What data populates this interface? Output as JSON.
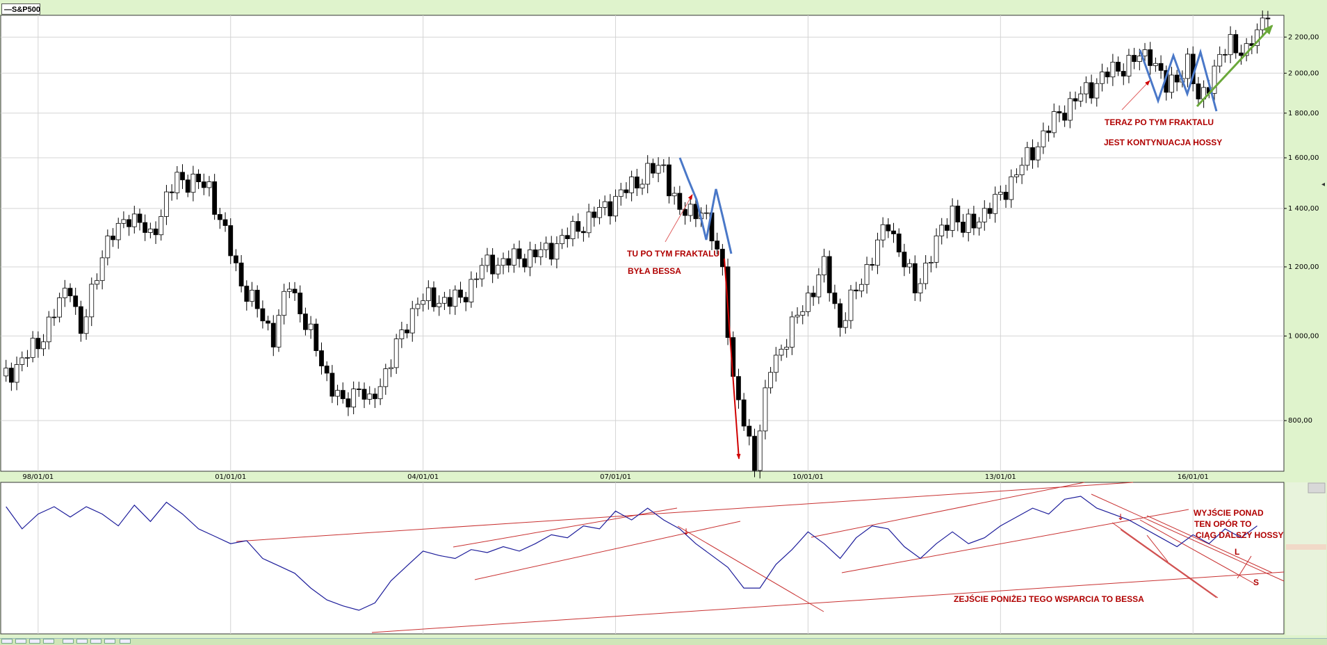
{
  "header": {
    "title": "S&P500"
  },
  "colors": {
    "candle_up": "#ffffff",
    "candle_down": "#000000",
    "fractal": "#4a78c8",
    "annotation": "#c00000",
    "trend_arrow": "#6aa83a",
    "osc_line": "#1c1c9a",
    "trendline": "#c83030",
    "grid": "#d4d4d4"
  },
  "chart_data": [
    {
      "type": "candlestick",
      "title": "S&P500",
      "scale": "log",
      "ylim": [
        700,
        2330
      ],
      "xlim": [
        "1997-06",
        "2017-06"
      ],
      "grid": true,
      "x_ticks": [
        "98/01/01",
        "01/01/01",
        "04/01/01",
        "07/01/01",
        "10/01/01",
        "13/01/01",
        "16/01/01"
      ],
      "y_ticks": [
        "800,00",
        "1 000,00",
        "1 200,00",
        "1 400,00",
        "1 600,00",
        "1 800,00",
        "2 000,00",
        "2 200,00"
      ],
      "y_tick_values": [
        800,
        1000,
        1200,
        1400,
        1600,
        1800,
        2000,
        2200
      ],
      "price_path": [
        {
          "date": "1997-07",
          "close": 900
        },
        {
          "date": "1998-01",
          "close": 980
        },
        {
          "date": "1998-07",
          "close": 1150
        },
        {
          "date": "1998-09",
          "close": 1000
        },
        {
          "date": "1999-01",
          "close": 1250
        },
        {
          "date": "1999-06",
          "close": 1380
        },
        {
          "date": "1999-10",
          "close": 1300
        },
        {
          "date": "2000-03",
          "close": 1520
        },
        {
          "date": "2000-09",
          "close": 1480
        },
        {
          "date": "2001-03",
          "close": 1150
        },
        {
          "date": "2001-09",
          "close": 1000
        },
        {
          "date": "2001-12",
          "close": 1150
        },
        {
          "date": "2002-07",
          "close": 900
        },
        {
          "date": "2002-10",
          "close": 830
        },
        {
          "date": "2003-01",
          "close": 880
        },
        {
          "date": "2003-03",
          "close": 830
        },
        {
          "date": "2003-12",
          "close": 1100
        },
        {
          "date": "2004-08",
          "close": 1100
        },
        {
          "date": "2004-12",
          "close": 1200
        },
        {
          "date": "2005-12",
          "close": 1250
        },
        {
          "date": "2006-12",
          "close": 1420
        },
        {
          "date": "2007-07",
          "close": 1540
        },
        {
          "date": "2007-10",
          "close": 1560
        },
        {
          "date": "2008-01",
          "close": 1380
        },
        {
          "date": "2008-05",
          "close": 1400
        },
        {
          "date": "2008-09",
          "close": 1200
        },
        {
          "date": "2008-11",
          "close": 880
        },
        {
          "date": "2009-03",
          "close": 720
        },
        {
          "date": "2009-06",
          "close": 920
        },
        {
          "date": "2010-04",
          "close": 1200
        },
        {
          "date": "2010-07",
          "close": 1030
        },
        {
          "date": "2011-04",
          "close": 1350
        },
        {
          "date": "2011-09",
          "close": 1130
        },
        {
          "date": "2012-04",
          "close": 1400
        },
        {
          "date": "2012-06",
          "close": 1320
        },
        {
          "date": "2012-12",
          "close": 1420
        },
        {
          "date": "2013-12",
          "close": 1800
        },
        {
          "date": "2014-09",
          "close": 2000
        },
        {
          "date": "2015-05",
          "close": 2110
        },
        {
          "date": "2015-08",
          "close": 1920
        },
        {
          "date": "2015-12",
          "close": 2050
        },
        {
          "date": "2016-02",
          "close": 1860
        },
        {
          "date": "2016-08",
          "close": 2180
        },
        {
          "date": "2016-11",
          "close": 2100
        },
        {
          "date": "2017-03",
          "close": 2380
        }
      ]
    },
    {
      "type": "line",
      "title": "",
      "xlim": [
        "1997-06",
        "2017-06"
      ],
      "grid": true,
      "series": [
        {
          "x": [
            "1997-07",
            "1997-10",
            "1998-01",
            "1998-04",
            "1998-07",
            "1998-10",
            "1999-01",
            "1999-04",
            "1999-07",
            "1999-10",
            "2000-01",
            "2000-04",
            "2000-07",
            "2000-10",
            "2001-01",
            "2001-04",
            "2001-07",
            "2001-10",
            "2002-01",
            "2002-04",
            "2002-07",
            "2002-10",
            "2003-01",
            "2003-04",
            "2003-07",
            "2003-10",
            "2004-01",
            "2004-04",
            "2004-07",
            "2004-10",
            "2005-01",
            "2005-04",
            "2005-07",
            "2005-10",
            "2006-01",
            "2006-04",
            "2006-07",
            "2006-10",
            "2007-01",
            "2007-04",
            "2007-07",
            "2007-10",
            "2008-01",
            "2008-04",
            "2008-07",
            "2008-10",
            "2009-01",
            "2009-04",
            "2009-07",
            "2009-10",
            "2010-01",
            "2010-04",
            "2010-07",
            "2010-10",
            "2011-01",
            "2011-04",
            "2011-07",
            "2011-10",
            "2012-01",
            "2012-04",
            "2012-07",
            "2012-10",
            "2013-01",
            "2013-04",
            "2013-07",
            "2013-10",
            "2014-01",
            "2014-04",
            "2014-07",
            "2014-10",
            "2015-01",
            "2015-04",
            "2015-07",
            "2015-10",
            "2016-01",
            "2016-04",
            "2016-07",
            "2016-10",
            "2017-01"
          ],
          "values": [
            85,
            70,
            80,
            85,
            78,
            85,
            80,
            72,
            86,
            75,
            88,
            80,
            70,
            65,
            60,
            62,
            50,
            45,
            40,
            30,
            22,
            18,
            15,
            20,
            35,
            45,
            55,
            52,
            50,
            56,
            54,
            58,
            55,
            60,
            66,
            64,
            72,
            70,
            82,
            76,
            84,
            76,
            70,
            60,
            52,
            44,
            30,
            30,
            46,
            56,
            68,
            60,
            50,
            64,
            72,
            70,
            58,
            50,
            60,
            68,
            60,
            64,
            72,
            78,
            84,
            80,
            90,
            92,
            84,
            80,
            76,
            70,
            64,
            58,
            66,
            60,
            70,
            64,
            72
          ]
        }
      ],
      "trendlines": 14
    }
  ],
  "annotations": {
    "left_fractal_line1": "TU PO TYM FRAKTALU",
    "left_fractal_line2": "BYŁA BESSA",
    "right_fractal_line1": "TERAZ PO TYM FRAKTALU",
    "right_fractal_line2": "JEST KONTYNUACJA HOSSY",
    "osc_support": "ZEJŚCIE PONIŻEJ TEGO WSPARCIA TO BESSA",
    "osc_breakout_line1": "WYJŚCIE PONAD",
    "osc_breakout_line2": "TEN OPÓR  TO",
    "osc_breakout_line3": "CIĄG DALSZY HOSSY",
    "osc_label_l": "L",
    "osc_label_s": "S"
  }
}
